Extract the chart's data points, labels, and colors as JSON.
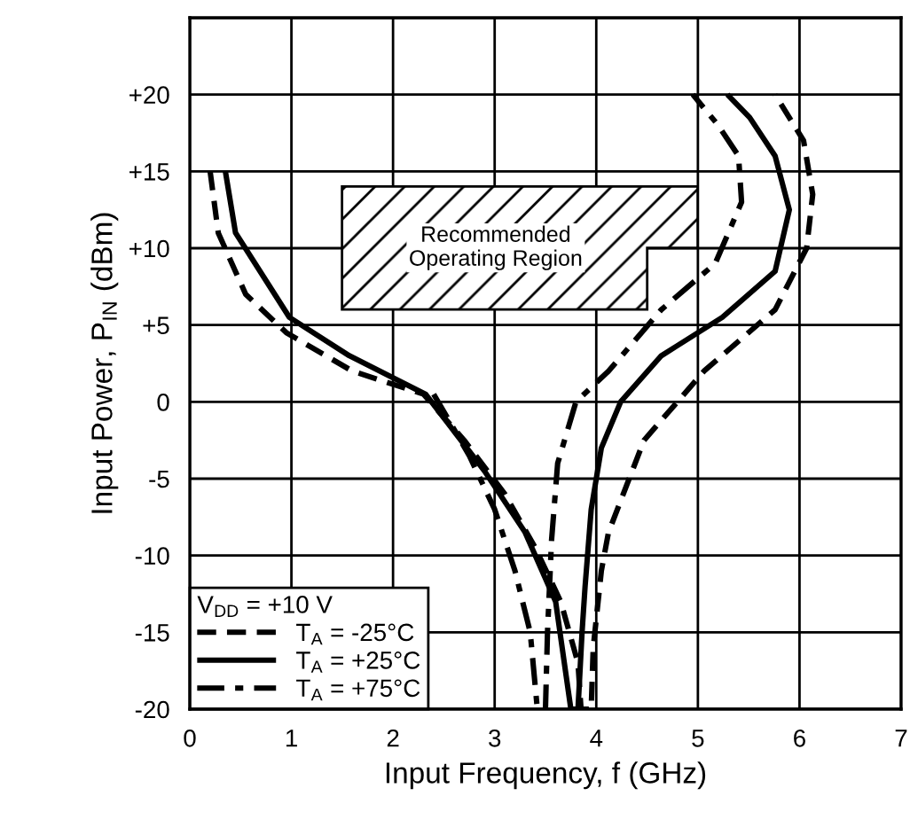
{
  "chart_data": {
    "type": "line",
    "xlabel": "Input Frequency, f (GHz)",
    "ylabel": "Input Power, P$_{IN}$ (dBm)",
    "legend_title": "V$_{DD}$ = +10 V",
    "xlim": [
      0,
      7
    ],
    "xticks": [
      0,
      1,
      2,
      3,
      4,
      5,
      6,
      7
    ],
    "ylim": [
      -20,
      25
    ],
    "yticks": [
      -20,
      -15,
      -10,
      -5,
      0,
      {
        "value": 5,
        "label": "+5"
      },
      {
        "value": 10,
        "label": "+10"
      },
      {
        "value": 15,
        "label": "+15"
      },
      {
        "value": 20,
        "label": "+20"
      },
      {
        "value": 25,
        "label": null
      }
    ],
    "grid": true,
    "legend": "bottom left",
    "marker": "none",
    "annotations": [
      "Recommended\nOperating Region"
    ],
    "series": [
      {
        "name": "T$_{A}$ = -25°C",
        "color": "#000000",
        "line_style": "dashed",
        "x": [
          0.2,
          0.28,
          0.55,
          0.95,
          1.6,
          2.3,
          2.7,
          3.1,
          3.4,
          3.65,
          3.82,
          3.85,
          3.95,
          3.97,
          4.05,
          4.12,
          4.47,
          5.06,
          5.76,
          6.07,
          6.13,
          6.04,
          5.76
        ],
        "values": [
          15,
          11,
          7,
          4.5,
          2,
          0.5,
          -2.5,
          -6,
          -9.5,
          -13,
          -17,
          -20,
          -20,
          -16,
          -11,
          -8.5,
          -2.5,
          2,
          6,
          10,
          13.5,
          17,
          20
        ]
      },
      {
        "name": "T$_{A}$ = +25°C",
        "color": "#000000",
        "line_style": "solid",
        "x": [
          0.35,
          0.45,
          0.98,
          1.57,
          2.32,
          2.9,
          3.3,
          3.6,
          3.75,
          3.82,
          3.86,
          3.89,
          3.95,
          4.05,
          4.24,
          4.64,
          5.24,
          5.76,
          5.9,
          5.76,
          5.51,
          5.29
        ],
        "values": [
          15,
          11,
          5.5,
          3,
          0.5,
          -4.5,
          -8.5,
          -13,
          -20,
          -20,
          -15,
          -12,
          -7,
          -3,
          0,
          3,
          5.5,
          8.5,
          12.5,
          16,
          18.5,
          20
        ]
      },
      {
        "name": "T$_{A}$ = +75°C",
        "color": "#000000",
        "line_style": "dashdot",
        "x": [
          2.4,
          2.75,
          3.0,
          3.2,
          3.35,
          3.42,
          3.5,
          3.52,
          3.56,
          3.62,
          3.8,
          4.12,
          4.64,
          5.17,
          5.43,
          5.4,
          5.2,
          4.95
        ],
        "values": [
          0.5,
          -3.5,
          -7,
          -11,
          -15,
          -20,
          -20,
          -15,
          -9,
          -4,
          0,
          2,
          6,
          9,
          13,
          16,
          18,
          20
        ]
      }
    ]
  }
}
